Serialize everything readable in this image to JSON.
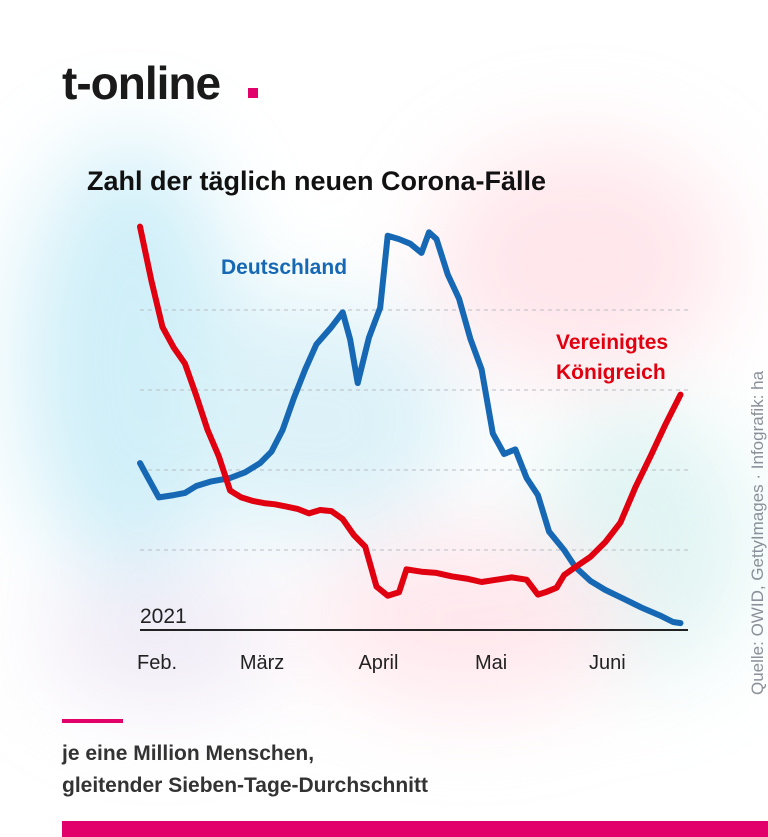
{
  "brand": {
    "logo_text": "t-online"
  },
  "source": "Quelle: OWID, GettyImages · Infografik: ha",
  "note": {
    "line1": "je eine Million Menschen,",
    "line2": "gleitender Sieben-Tage-Durchschnitt"
  },
  "colors": {
    "accent": "#e2006a",
    "germany": "#1668b4",
    "uk": "#e0000f"
  },
  "chart_data": {
    "type": "line",
    "title": "Zahl der täglich neuen Corona-Fälle",
    "xlabel": "",
    "ylabel": "",
    "year_label": "2021",
    "x_tick_labels": [
      "Feb.",
      "März",
      "April",
      "Mai",
      "Juni"
    ],
    "x_ticks": [
      "2021-02-01",
      "2021-03-01",
      "2021-04-01",
      "2021-05-01",
      "2021-06-01"
    ],
    "xlim": [
      "2021-02-01",
      "2021-06-27"
    ],
    "ylim": [
      0,
      350
    ],
    "y_gridlines": [
      70,
      140,
      210,
      280
    ],
    "y_tick_labels_shown": false,
    "grid": true,
    "legend": "inline labels on lines",
    "series": [
      {
        "name": "Deutschland",
        "color": "#1668b4",
        "points": [
          [
            "2021-02-01",
            146
          ],
          [
            "2021-02-03",
            134
          ],
          [
            "2021-02-06",
            116
          ],
          [
            "2021-02-10",
            118
          ],
          [
            "2021-02-13",
            120
          ],
          [
            "2021-02-16",
            126
          ],
          [
            "2021-02-20",
            130
          ],
          [
            "2021-02-25",
            133
          ],
          [
            "2021-03-01",
            138
          ],
          [
            "2021-03-05",
            146
          ],
          [
            "2021-03-08",
            156
          ],
          [
            "2021-03-11",
            175
          ],
          [
            "2021-03-14",
            203
          ],
          [
            "2021-03-17",
            228
          ],
          [
            "2021-03-20",
            250
          ],
          [
            "2021-03-24",
            265
          ],
          [
            "2021-03-27",
            278
          ],
          [
            "2021-03-29",
            254
          ],
          [
            "2021-03-31",
            216
          ],
          [
            "2021-04-03",
            256
          ],
          [
            "2021-04-06",
            282
          ],
          [
            "2021-04-08",
            345
          ],
          [
            "2021-04-11",
            342
          ],
          [
            "2021-04-14",
            338
          ],
          [
            "2021-04-17",
            330
          ],
          [
            "2021-04-19",
            348
          ],
          [
            "2021-04-21",
            342
          ],
          [
            "2021-04-24",
            311
          ],
          [
            "2021-04-27",
            290
          ],
          [
            "2021-04-30",
            255
          ],
          [
            "2021-05-03",
            228
          ],
          [
            "2021-05-06",
            172
          ],
          [
            "2021-05-09",
            154
          ],
          [
            "2021-05-12",
            158
          ],
          [
            "2021-05-15",
            133
          ],
          [
            "2021-05-18",
            118
          ],
          [
            "2021-05-21",
            86
          ],
          [
            "2021-05-25",
            70
          ],
          [
            "2021-05-28",
            55
          ],
          [
            "2021-06-01",
            43
          ],
          [
            "2021-06-05",
            35
          ],
          [
            "2021-06-10",
            27
          ],
          [
            "2021-06-15",
            19
          ],
          [
            "2021-06-20",
            12
          ],
          [
            "2021-06-23",
            7
          ],
          [
            "2021-06-25",
            6
          ]
        ]
      },
      {
        "name": "Vereinigtes Königreich",
        "color": "#e0000f",
        "points": [
          [
            "2021-02-01",
            353
          ],
          [
            "2021-02-04",
            306
          ],
          [
            "2021-02-07",
            265
          ],
          [
            "2021-02-10",
            247
          ],
          [
            "2021-02-13",
            233
          ],
          [
            "2021-02-16",
            205
          ],
          [
            "2021-02-19",
            175
          ],
          [
            "2021-02-22",
            152
          ],
          [
            "2021-02-25",
            122
          ],
          [
            "2021-02-28",
            116
          ],
          [
            "2021-03-03",
            113
          ],
          [
            "2021-03-06",
            111
          ],
          [
            "2021-03-09",
            110
          ],
          [
            "2021-03-12",
            108
          ],
          [
            "2021-03-15",
            106
          ],
          [
            "2021-03-18",
            102
          ],
          [
            "2021-03-21",
            105
          ],
          [
            "2021-03-24",
            104
          ],
          [
            "2021-03-27",
            97
          ],
          [
            "2021-03-30",
            83
          ],
          [
            "2021-04-02",
            73
          ],
          [
            "2021-04-05",
            38
          ],
          [
            "2021-04-08",
            30
          ],
          [
            "2021-04-11",
            33
          ],
          [
            "2021-04-13",
            53
          ],
          [
            "2021-04-17",
            51
          ],
          [
            "2021-04-21",
            50
          ],
          [
            "2021-04-25",
            47
          ],
          [
            "2021-04-29",
            45
          ],
          [
            "2021-05-03",
            42
          ],
          [
            "2021-05-07",
            44
          ],
          [
            "2021-05-11",
            46
          ],
          [
            "2021-05-15",
            44
          ],
          [
            "2021-05-18",
            31
          ],
          [
            "2021-05-20",
            33
          ],
          [
            "2021-05-23",
            37
          ],
          [
            "2021-05-25",
            48
          ],
          [
            "2021-05-28",
            55
          ],
          [
            "2021-06-01",
            64
          ],
          [
            "2021-06-05",
            77
          ],
          [
            "2021-06-09",
            94
          ],
          [
            "2021-06-13",
            125
          ],
          [
            "2021-06-17",
            152
          ],
          [
            "2021-06-21",
            180
          ],
          [
            "2021-06-25",
            206
          ]
        ]
      }
    ]
  }
}
